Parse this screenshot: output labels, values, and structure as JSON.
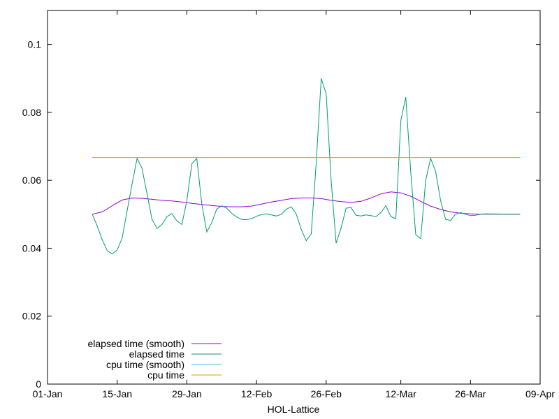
{
  "chart_data": {
    "type": "line",
    "xlabel": "HOL-Lattice",
    "ylabel": "",
    "title": "",
    "xlim": [
      "2024-01-01",
      "2024-04-09"
    ],
    "ylim": [
      0,
      0.11
    ],
    "x_ticks": [
      "01-Jan",
      "15-Jan",
      "29-Jan",
      "12-Feb",
      "26-Feb",
      "12-Mar",
      "26-Mar",
      "09-Apr"
    ],
    "y_ticks": [
      "0",
      "0.02",
      "0.04",
      "0.06",
      "0.08",
      "0.1"
    ],
    "legend_position": "bottom-left",
    "series": [
      {
        "name": "elapsed time (smooth)",
        "color": "#9400d3",
        "points": [
          [
            "2024-01-10",
            0.05
          ],
          [
            "2024-01-12",
            0.0507
          ],
          [
            "2024-01-14",
            0.0525
          ],
          [
            "2024-01-16",
            0.0542
          ],
          [
            "2024-01-18",
            0.0548
          ],
          [
            "2024-01-20",
            0.0547
          ],
          [
            "2024-01-22",
            0.0544
          ],
          [
            "2024-01-24",
            0.0541
          ],
          [
            "2024-01-26",
            0.0539
          ],
          [
            "2024-01-28",
            0.0536
          ],
          [
            "2024-01-30",
            0.0532
          ],
          [
            "2024-02-01",
            0.0529
          ],
          [
            "2024-02-03",
            0.0526
          ],
          [
            "2024-02-05",
            0.0523
          ],
          [
            "2024-02-07",
            0.0522
          ],
          [
            "2024-02-09",
            0.0522
          ],
          [
            "2024-02-11",
            0.0524
          ],
          [
            "2024-02-13",
            0.053
          ],
          [
            "2024-02-15",
            0.0536
          ],
          [
            "2024-02-17",
            0.0541
          ],
          [
            "2024-02-19",
            0.0546
          ],
          [
            "2024-02-21",
            0.0548
          ],
          [
            "2024-02-23",
            0.0548
          ],
          [
            "2024-02-25",
            0.0546
          ],
          [
            "2024-02-27",
            0.0541
          ],
          [
            "2024-02-29",
            0.0537
          ],
          [
            "2024-03-02",
            0.0535
          ],
          [
            "2024-03-04",
            0.0538
          ],
          [
            "2024-03-06",
            0.0548
          ],
          [
            "2024-03-08",
            0.056
          ],
          [
            "2024-03-10",
            0.0566
          ],
          [
            "2024-03-12",
            0.0563
          ],
          [
            "2024-03-14",
            0.0553
          ],
          [
            "2024-03-16",
            0.0538
          ],
          [
            "2024-03-18",
            0.0524
          ],
          [
            "2024-03-20",
            0.0514
          ],
          [
            "2024-03-22",
            0.0507
          ],
          [
            "2024-03-24",
            0.0503
          ],
          [
            "2024-03-26",
            0.0501
          ],
          [
            "2024-03-28",
            0.05
          ],
          [
            "2024-04-05",
            0.05
          ]
        ]
      },
      {
        "name": "elapsed time",
        "color": "#009e73",
        "points": [
          [
            "2024-01-10",
            0.05
          ],
          [
            "2024-01-11",
            0.0465
          ],
          [
            "2024-01-12",
            0.0425
          ],
          [
            "2024-01-13",
            0.0393
          ],
          [
            "2024-01-14",
            0.0383
          ],
          [
            "2024-01-15",
            0.0395
          ],
          [
            "2024-01-16",
            0.043
          ],
          [
            "2024-01-17",
            0.051
          ],
          [
            "2024-01-18",
            0.059
          ],
          [
            "2024-01-19",
            0.0665
          ],
          [
            "2024-01-20",
            0.0635
          ],
          [
            "2024-01-21",
            0.056
          ],
          [
            "2024-01-22",
            0.0485
          ],
          [
            "2024-01-23",
            0.0458
          ],
          [
            "2024-01-24",
            0.047
          ],
          [
            "2024-01-25",
            0.0493
          ],
          [
            "2024-01-26",
            0.0502
          ],
          [
            "2024-01-27",
            0.048
          ],
          [
            "2024-01-28",
            0.047
          ],
          [
            "2024-01-29",
            0.054
          ],
          [
            "2024-01-30",
            0.0648
          ],
          [
            "2024-01-31",
            0.0665
          ],
          [
            "2024-02-01",
            0.053
          ],
          [
            "2024-02-02",
            0.0448
          ],
          [
            "2024-02-03",
            0.0475
          ],
          [
            "2024-02-04",
            0.0515
          ],
          [
            "2024-02-05",
            0.0525
          ],
          [
            "2024-02-06",
            0.0518
          ],
          [
            "2024-02-07",
            0.0503
          ],
          [
            "2024-02-08",
            0.0492
          ],
          [
            "2024-02-09",
            0.0485
          ],
          [
            "2024-02-10",
            0.0484
          ],
          [
            "2024-02-11",
            0.0487
          ],
          [
            "2024-02-12",
            0.0494
          ],
          [
            "2024-02-13",
            0.0499
          ],
          [
            "2024-02-14",
            0.0501
          ],
          [
            "2024-02-15",
            0.0498
          ],
          [
            "2024-02-16",
            0.0495
          ],
          [
            "2024-02-17",
            0.05
          ],
          [
            "2024-02-18",
            0.0515
          ],
          [
            "2024-02-19",
            0.0522
          ],
          [
            "2024-02-20",
            0.05
          ],
          [
            "2024-02-21",
            0.0455
          ],
          [
            "2024-02-22",
            0.0422
          ],
          [
            "2024-02-23",
            0.0442
          ],
          [
            "2024-02-24",
            0.065
          ],
          [
            "2024-02-25",
            0.09
          ],
          [
            "2024-02-26",
            0.0855
          ],
          [
            "2024-02-27",
            0.06
          ],
          [
            "2024-02-28",
            0.0415
          ],
          [
            "2024-02-29",
            0.046
          ],
          [
            "2024-03-01",
            0.0518
          ],
          [
            "2024-03-02",
            0.052
          ],
          [
            "2024-03-03",
            0.0497
          ],
          [
            "2024-03-04",
            0.0495
          ],
          [
            "2024-03-05",
            0.0498
          ],
          [
            "2024-03-06",
            0.0496
          ],
          [
            "2024-03-07",
            0.0493
          ],
          [
            "2024-03-08",
            0.0505
          ],
          [
            "2024-03-09",
            0.0525
          ],
          [
            "2024-03-10",
            0.0493
          ],
          [
            "2024-03-11",
            0.0487
          ],
          [
            "2024-03-12",
            0.0775
          ],
          [
            "2024-03-13",
            0.0845
          ],
          [
            "2024-03-14",
            0.0625
          ],
          [
            "2024-03-15",
            0.044
          ],
          [
            "2024-03-16",
            0.0428
          ],
          [
            "2024-03-17",
            0.06
          ],
          [
            "2024-03-18",
            0.0665
          ],
          [
            "2024-03-19",
            0.0625
          ],
          [
            "2024-03-20",
            0.054
          ],
          [
            "2024-03-21",
            0.0485
          ],
          [
            "2024-03-22",
            0.0482
          ],
          [
            "2024-03-23",
            0.05
          ],
          [
            "2024-03-24",
            0.0505
          ],
          [
            "2024-03-25",
            0.05
          ],
          [
            "2024-03-26",
            0.0496
          ],
          [
            "2024-03-27",
            0.0497
          ],
          [
            "2024-03-28",
            0.05
          ],
          [
            "2024-03-29",
            0.0501
          ],
          [
            "2024-04-05",
            0.05
          ]
        ]
      },
      {
        "name": "cpu time (smooth)",
        "color": "#56b4e9",
        "points": []
      },
      {
        "name": "cpu time",
        "color": "#e69f00",
        "points": [
          [
            "2024-01-10",
            0.0667
          ],
          [
            "2024-04-05",
            0.0667
          ]
        ]
      }
    ]
  }
}
